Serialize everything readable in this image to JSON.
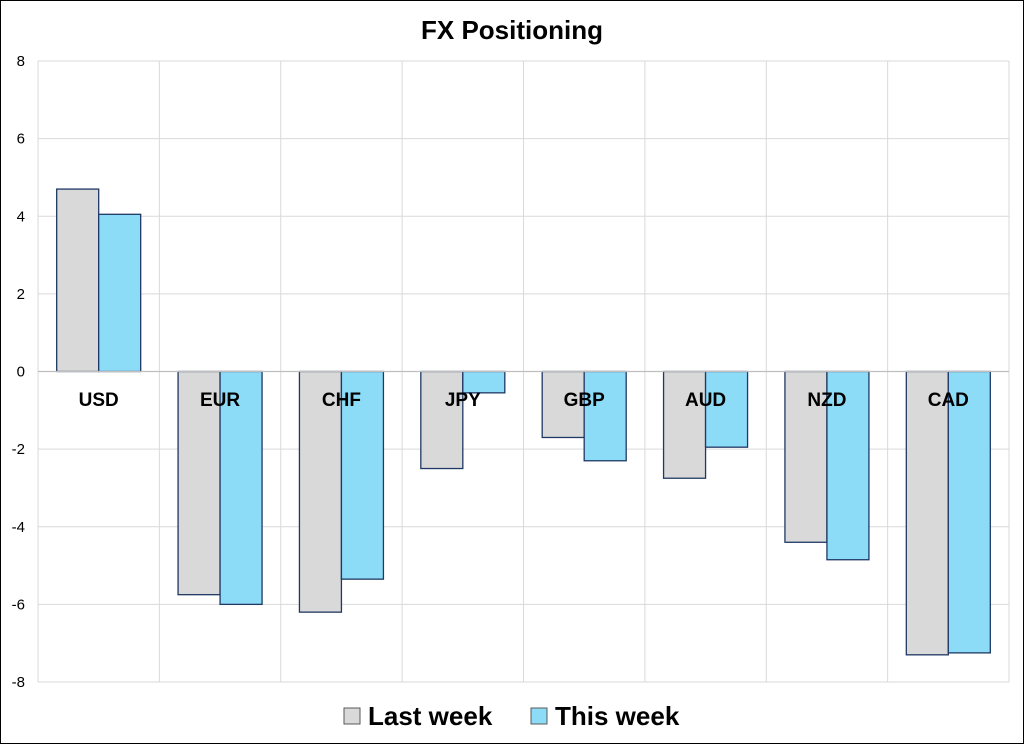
{
  "chart_data": {
    "type": "bar",
    "title": "FX Positioning",
    "xlabel": "",
    "ylabel": "",
    "categories": [
      "USD",
      "EUR",
      "CHF",
      "JPY",
      "GBP",
      "AUD",
      "NZD",
      "CAD"
    ],
    "series": [
      {
        "name": "Last week",
        "color": "#d9d9d9",
        "values": [
          4.7,
          -5.75,
          -6.2,
          -2.5,
          -1.7,
          -2.75,
          -4.4,
          -7.3
        ]
      },
      {
        "name": "This week",
        "color": "#8ddcf7",
        "values": [
          4.05,
          -6.0,
          -5.35,
          -0.55,
          -2.3,
          -1.95,
          -4.85,
          -7.25
        ]
      }
    ],
    "ylim": [
      -8,
      8
    ],
    "yticks": [
      "8",
      "6",
      "4",
      "2",
      "0",
      "-2",
      "-4",
      "-6",
      "-8"
    ],
    "grid": true,
    "legend": "bottom",
    "bar_border_color": "#1f3864"
  }
}
